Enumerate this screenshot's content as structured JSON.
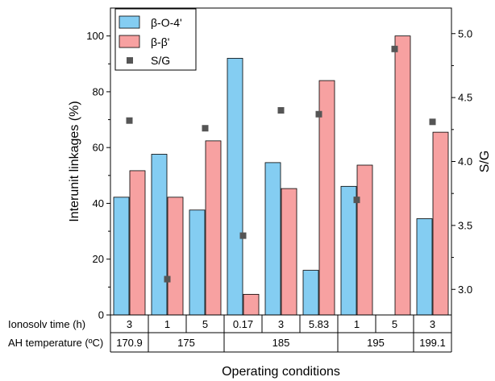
{
  "chart_data": {
    "type": "bar",
    "xlabel": "Operating conditions",
    "ylabel": "Interunit linkages (%)",
    "y2label": "S/G",
    "ylim": [
      0,
      110
    ],
    "y2lim": [
      2.8,
      5.2
    ],
    "yticks": [
      "0",
      "20",
      "40",
      "60",
      "80",
      "100"
    ],
    "y2ticks": [
      "3.0",
      "3.5",
      "4.0",
      "4.5",
      "5.0"
    ],
    "categories": [
      "3",
      "1",
      "5",
      "0.17",
      "3",
      "5.83",
      "1",
      "5",
      "3"
    ],
    "series": [
      {
        "name": "β-O-4'",
        "kind": "bar",
        "axis": "left",
        "color": "#84cdf2",
        "values": [
          42.2,
          57.6,
          37.6,
          92.0,
          54.6,
          16.0,
          46.1,
          0,
          34.5
        ]
      },
      {
        "name": "β-β'",
        "kind": "bar",
        "axis": "left",
        "color": "#f7a1a1",
        "values": [
          51.7,
          42.2,
          62.4,
          7.4,
          45.3,
          84.0,
          53.7,
          100.0,
          65.5
        ]
      },
      {
        "name": "S/G",
        "kind": "scatter",
        "axis": "right",
        "color": "#555555",
        "values": [
          4.32,
          3.08,
          4.26,
          3.42,
          4.4,
          4.37,
          3.7,
          4.88,
          4.31
        ]
      }
    ],
    "legend_position": "top-left",
    "table": {
      "rows": [
        {
          "label": "Ionosolv time (h)",
          "cells": [
            "3",
            "1",
            "5",
            "0.17",
            "3",
            "5.83",
            "1",
            "5",
            "3"
          ]
        },
        {
          "label": "AH temperature (ºC)",
          "groups": [
            {
              "text": "170.9",
              "span": 1
            },
            {
              "text": "175",
              "span": 2
            },
            {
              "text": "185",
              "span": 3
            },
            {
              "text": "195",
              "span": 2
            },
            {
              "text": "199.1",
              "span": 1
            }
          ]
        }
      ]
    }
  }
}
